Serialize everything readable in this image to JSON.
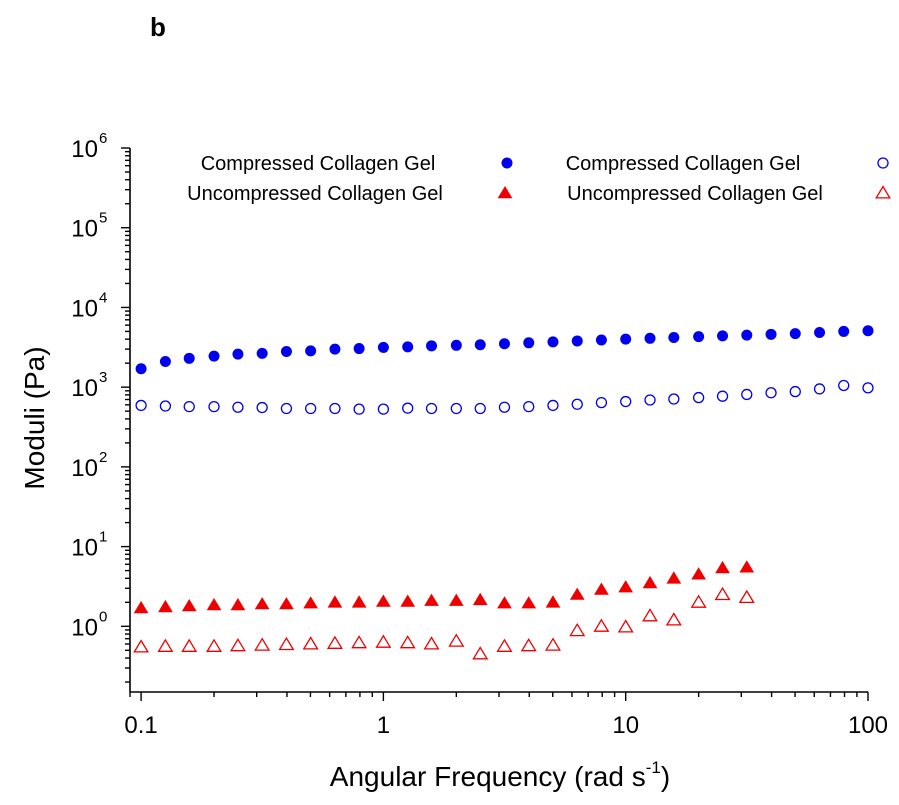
{
  "chart_data": {
    "type": "scatter",
    "panel_label": "b",
    "xlabel": "Angular Frequency (rad s",
    "xlabel_sup": "-1",
    "xlabel_end": ")",
    "ylabel": "Moduli (Pa)",
    "x_scale": "log",
    "y_scale": "log",
    "xlim": [
      0.09,
      100
    ],
    "ylim": [
      0.15,
      1000000
    ],
    "x_ticks": [
      {
        "value": 0.1,
        "label": "0.1"
      },
      {
        "value": 1,
        "label": "1"
      },
      {
        "value": 10,
        "label": "10"
      },
      {
        "value": 100,
        "label": "100"
      }
    ],
    "y_ticks": [
      {
        "value": 1,
        "base": "10",
        "exp": "0"
      },
      {
        "value": 10,
        "base": "10",
        "exp": "1"
      },
      {
        "value": 100,
        "base": "10",
        "exp": "2"
      },
      {
        "value": 1000,
        "base": "10",
        "exp": "3"
      },
      {
        "value": 10000,
        "base": "10",
        "exp": "4"
      },
      {
        "value": 100000,
        "base": "10",
        "exp": "5"
      },
      {
        "value": 1000000,
        "base": "10",
        "exp": "6"
      }
    ],
    "grid": false,
    "legend_position": "top",
    "colors": {
      "blue": "#0000ee",
      "red": "#ee0000"
    },
    "series": [
      {
        "name": "Compressed Collagen Gel",
        "marker": "circle",
        "filled": true,
        "color": "#0000ee",
        "x": [
          0.1,
          0.126,
          0.158,
          0.2,
          0.251,
          0.316,
          0.398,
          0.501,
          0.631,
          0.794,
          1,
          1.26,
          1.58,
          2,
          2.51,
          3.16,
          3.98,
          5.01,
          6.31,
          7.94,
          10,
          12.6,
          15.8,
          20,
          25.1,
          31.6,
          39.8,
          50.1,
          63.1,
          79.4,
          100
        ],
        "y": [
          1700,
          2100,
          2300,
          2450,
          2600,
          2650,
          2800,
          2850,
          3000,
          3050,
          3150,
          3200,
          3300,
          3350,
          3400,
          3500,
          3600,
          3700,
          3800,
          3900,
          4000,
          4100,
          4200,
          4300,
          4400,
          4500,
          4600,
          4700,
          4850,
          5000,
          5100
        ]
      },
      {
        "name": "Compressed Collagen Gel",
        "marker": "circle",
        "filled": false,
        "color": "#0000ee",
        "x": [
          0.1,
          0.126,
          0.158,
          0.2,
          0.251,
          0.316,
          0.398,
          0.501,
          0.631,
          0.794,
          1,
          1.26,
          1.58,
          2,
          2.51,
          3.16,
          3.98,
          5.01,
          6.31,
          7.94,
          10,
          12.6,
          15.8,
          20,
          25.1,
          31.6,
          39.8,
          50.1,
          63.1,
          79.4,
          100
        ],
        "y": [
          590,
          580,
          570,
          570,
          560,
          555,
          540,
          540,
          540,
          530,
          530,
          545,
          540,
          540,
          540,
          560,
          570,
          590,
          610,
          640,
          660,
          690,
          710,
          740,
          770,
          810,
          850,
          880,
          950,
          1050,
          980
        ]
      },
      {
        "name": "Uncompressed Collagen Gel",
        "marker": "triangle",
        "filled": true,
        "color": "#ee0000",
        "x": [
          0.1,
          0.126,
          0.158,
          0.2,
          0.251,
          0.316,
          0.398,
          0.501,
          0.631,
          0.794,
          1,
          1.26,
          1.58,
          2,
          2.51,
          3.16,
          3.98,
          5.01,
          6.31,
          7.94,
          10,
          12.6,
          15.8,
          20,
          25.1,
          31.6
        ],
        "y": [
          1.7,
          1.75,
          1.8,
          1.85,
          1.85,
          1.9,
          1.9,
          1.95,
          2.0,
          2.0,
          2.05,
          2.05,
          2.1,
          2.1,
          2.15,
          1.95,
          1.95,
          2.0,
          2.5,
          2.9,
          3.1,
          3.5,
          4.0,
          4.5,
          5.4,
          5.5
        ]
      },
      {
        "name": "Uncompressed Collagen Gel",
        "marker": "triangle",
        "filled": false,
        "color": "#ee0000",
        "x": [
          0.1,
          0.126,
          0.158,
          0.2,
          0.251,
          0.316,
          0.398,
          0.501,
          0.631,
          0.794,
          1,
          1.26,
          1.58,
          2,
          2.51,
          3.16,
          3.98,
          5.01,
          6.31,
          7.94,
          10,
          12.6,
          15.8,
          20,
          25.1,
          31.6
        ],
        "y": [
          0.55,
          0.56,
          0.56,
          0.56,
          0.57,
          0.58,
          0.59,
          0.6,
          0.61,
          0.62,
          0.63,
          0.62,
          0.6,
          0.65,
          0.45,
          0.56,
          0.57,
          0.58,
          0.88,
          1.0,
          0.98,
          1.35,
          1.2,
          2.0,
          2.5,
          2.3
        ]
      }
    ]
  }
}
